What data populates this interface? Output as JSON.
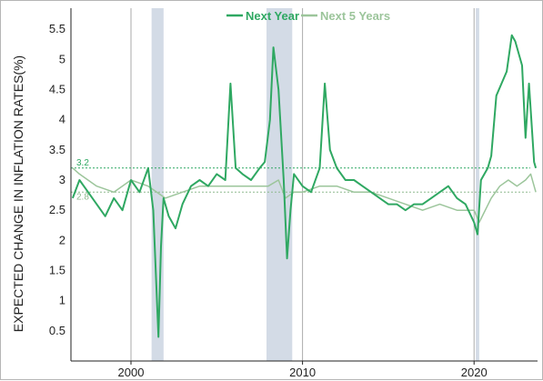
{
  "chart_data": {
    "type": "line",
    "title": "",
    "xlabel": "",
    "ylabel": "EXPECTED CHANGE IN INFLATION RATES(%)",
    "xlim": [
      1996.5,
      2023.7
    ],
    "ylim": [
      0,
      5.85
    ],
    "yticks": [
      "0.5",
      "1",
      "1.5",
      "2",
      "2.5",
      "3",
      "3.5",
      "4",
      "4.5",
      "5",
      "5.5"
    ],
    "xticks": [
      "2000",
      "2010",
      "2020"
    ],
    "legend_position": "top-center",
    "grid": false,
    "recessions": [
      [
        2001.2,
        2001.9
      ],
      [
        2007.9,
        2009.4
      ],
      [
        2020.1,
        2020.3
      ]
    ],
    "decade_lines": [
      2000,
      2010,
      2020
    ],
    "reference_lines": [
      {
        "value": 3.2,
        "label": "3.2",
        "color": "#2fa862"
      },
      {
        "value": 2.8,
        "label": "2.8",
        "color": "#8fba8f"
      }
    ],
    "colors": {
      "next_year": "#2fa862",
      "next_5_years": "#9cc59b",
      "recession": "#d3dbe6",
      "decade_line": "#aaaaaa"
    },
    "series": [
      {
        "name": "Next Year",
        "color": "#2fa862",
        "x": [
          1996.6,
          1997.0,
          1997.5,
          1998.0,
          1998.5,
          1999.0,
          1999.5,
          2000.0,
          2000.5,
          2001.0,
          2001.3,
          2001.6,
          2001.75,
          2001.9,
          2002.2,
          2002.6,
          2003.0,
          2003.5,
          2004.0,
          2004.5,
          2005.0,
          2005.5,
          2005.8,
          2006.1,
          2006.5,
          2007.0,
          2007.5,
          2007.8,
          2008.1,
          2008.3,
          2008.6,
          2008.9,
          2009.1,
          2009.3,
          2009.5,
          2010.0,
          2010.5,
          2011.0,
          2011.3,
          2011.6,
          2012.0,
          2012.5,
          2013.0,
          2013.5,
          2014.0,
          2014.5,
          2015.0,
          2015.5,
          2016.0,
          2016.5,
          2017.0,
          2017.5,
          2018.0,
          2018.5,
          2019.0,
          2019.5,
          2020.0,
          2020.2,
          2020.4,
          2020.8,
          2021.0,
          2021.3,
          2021.6,
          2021.9,
          2022.2,
          2022.4,
          2022.8,
          2023.0,
          2023.2,
          2023.5,
          2023.6
        ],
        "values": [
          2.7,
          3.0,
          2.8,
          2.6,
          2.4,
          2.7,
          2.5,
          3.0,
          2.8,
          3.2,
          2.5,
          0.4,
          1.9,
          2.7,
          2.4,
          2.2,
          2.6,
          2.9,
          3.0,
          2.9,
          3.1,
          3.0,
          4.6,
          3.2,
          3.1,
          3.0,
          3.2,
          3.3,
          4.0,
          5.2,
          4.5,
          3.0,
          1.7,
          2.5,
          3.1,
          2.9,
          2.8,
          3.2,
          4.6,
          3.5,
          3.2,
          3.0,
          3.0,
          2.9,
          2.8,
          2.7,
          2.6,
          2.6,
          2.5,
          2.6,
          2.6,
          2.7,
          2.8,
          2.9,
          2.7,
          2.6,
          2.3,
          2.1,
          3.0,
          3.2,
          3.4,
          4.4,
          4.6,
          4.8,
          5.4,
          5.3,
          4.9,
          3.7,
          4.6,
          3.3,
          3.2
        ]
      },
      {
        "name": "Next 5 Years",
        "color": "#9cc59b",
        "x": [
          1996.6,
          1997.0,
          1998.0,
          1999.0,
          2000.0,
          2001.0,
          2001.5,
          2002.0,
          2003.0,
          2004.0,
          2005.0,
          2006.0,
          2007.0,
          2008.0,
          2008.6,
          2009.0,
          2009.5,
          2010.0,
          2011.0,
          2012.0,
          2013.0,
          2014.0,
          2015.0,
          2016.0,
          2017.0,
          2018.0,
          2019.0,
          2020.0,
          2020.3,
          2021.0,
          2021.5,
          2022.0,
          2022.5,
          2023.0,
          2023.3,
          2023.6
        ],
        "values": [
          3.2,
          3.1,
          2.9,
          2.8,
          3.0,
          2.9,
          2.8,
          2.7,
          2.8,
          2.9,
          2.9,
          2.9,
          2.9,
          2.9,
          3.0,
          2.7,
          2.8,
          2.8,
          2.9,
          2.9,
          2.8,
          2.8,
          2.7,
          2.6,
          2.5,
          2.6,
          2.5,
          2.5,
          2.3,
          2.7,
          2.9,
          3.0,
          2.9,
          3.0,
          3.1,
          2.8
        ]
      }
    ]
  }
}
